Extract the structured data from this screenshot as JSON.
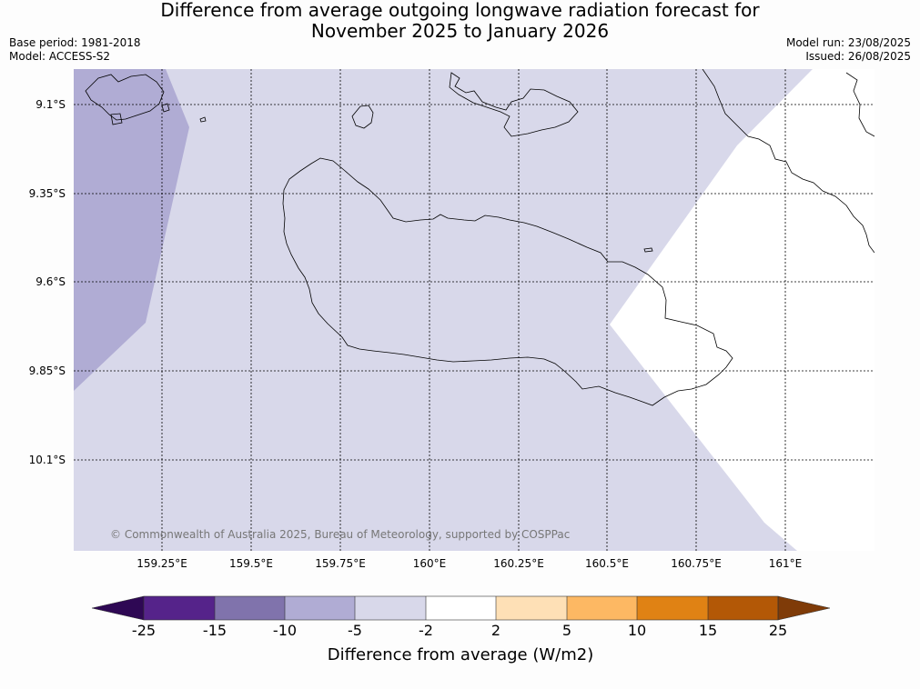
{
  "header": {
    "title_line1": "Difference from average outgoing longwave radiation forecast for",
    "title_line2": "November 2025 to January 2026",
    "base_period": "Base period: 1981-2018",
    "model": "Model: ACCESS-S2",
    "model_run": "Model run: 23/08/2025",
    "issued": "Issued: 26/08/2025"
  },
  "map": {
    "lat_labels": [
      "9.1°S",
      "9.35°S",
      "9.6°S",
      "9.85°S",
      "10.1°S"
    ],
    "lon_labels": [
      "159.25°E",
      "159.5°E",
      "159.75°E",
      "160°E",
      "160.25°E",
      "160.5°E",
      "160.75°E",
      "161°E"
    ],
    "copyright": "© Commonwealth of Australia 2025, Bureau of Meteorology, supported by COSPPac",
    "region_colors": {
      "minus10_to_minus5": "#b0acd4",
      "minus5_to_minus2": "#d8d8ea",
      "minus2_to_2": "#ffffff"
    }
  },
  "colorbar": {
    "title": "Difference from average (W/m2)",
    "tick_labels": [
      "-25",
      "-15",
      "-10",
      "-5",
      "-2",
      "2",
      "5",
      "10",
      "15",
      "25"
    ],
    "colors": [
      "#2e0854",
      "#55238a",
      "#8073ac",
      "#b0acd4",
      "#d8d8ea",
      "#ffffff",
      "#fee0b6",
      "#fdb863",
      "#e08214",
      "#b35806",
      "#7f3b08"
    ]
  }
}
